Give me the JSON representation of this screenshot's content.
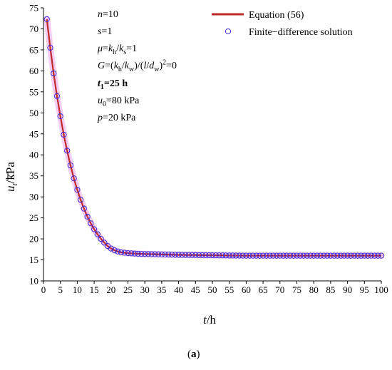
{
  "chart_data": {
    "type": "line",
    "x_ticks": [
      0,
      5,
      10,
      15,
      20,
      25,
      30,
      35,
      40,
      45,
      50,
      55,
      60,
      65,
      70,
      75,
      80,
      85,
      90,
      95,
      100
    ],
    "y_ticks": [
      10,
      15,
      20,
      25,
      30,
      35,
      40,
      45,
      50,
      55,
      60,
      65,
      70,
      75
    ],
    "xlim": [
      0,
      100
    ],
    "ylim": [
      10,
      75
    ],
    "xlabel_var": "t",
    "xlabel_unit": "/h",
    "ylabel_var": "u",
    "ylabel_sub": "t",
    "ylabel_unit": "/kPa",
    "grid": false,
    "legend_position": "top-right",
    "series": [
      {
        "name": "Equation (56)",
        "style": "line",
        "color": "#c0282a",
        "x": [
          1,
          2,
          3,
          4,
          5,
          6,
          7,
          8,
          9,
          10,
          11,
          12,
          13,
          14,
          15,
          16,
          17,
          18,
          19,
          20,
          21,
          22,
          23,
          24,
          25,
          26,
          27,
          28,
          30,
          35,
          40,
          45,
          50,
          55,
          60,
          65,
          70,
          75,
          80,
          85,
          90,
          95,
          100
        ],
        "y": [
          72.3,
          65.5,
          59.4,
          54.0,
          49.2,
          44.8,
          41.0,
          37.5,
          34.4,
          31.7,
          29.3,
          27.2,
          25.3,
          23.7,
          22.3,
          21.1,
          20.0,
          19.1,
          18.3,
          17.7,
          17.3,
          17.0,
          16.8,
          16.7,
          16.6,
          16.55,
          16.5,
          16.45,
          16.4,
          16.3,
          16.2,
          16.15,
          16.1,
          16.05,
          16.0,
          16.0,
          16.0,
          16.0,
          16.0,
          16.0,
          16.0,
          16.0,
          16.0
        ]
      },
      {
        "name": "Finite−difference solution",
        "style": "marker",
        "color": "#3b2bd6",
        "x": [
          1,
          2,
          3,
          4,
          5,
          6,
          7,
          8,
          9,
          10,
          11,
          12,
          13,
          14,
          15,
          16,
          17,
          18,
          19,
          20,
          21,
          22,
          23,
          24,
          25,
          26,
          27,
          28,
          29,
          30,
          31,
          32,
          33,
          34,
          35,
          36,
          37,
          38,
          39,
          40,
          41,
          42,
          43,
          44,
          45,
          46,
          47,
          48,
          49,
          50,
          51,
          52,
          53,
          54,
          55,
          56,
          57,
          58,
          59,
          60,
          61,
          62,
          63,
          64,
          65,
          66,
          67,
          68,
          69,
          70,
          71,
          72,
          73,
          74,
          75,
          76,
          77,
          78,
          79,
          80,
          81,
          82,
          83,
          84,
          85,
          86,
          87,
          88,
          89,
          90,
          91,
          92,
          93,
          94,
          95,
          96,
          97,
          98,
          99,
          100
        ],
        "y": [
          72.3,
          65.5,
          59.4,
          54.0,
          49.2,
          44.8,
          41.0,
          37.5,
          34.4,
          31.7,
          29.3,
          27.2,
          25.3,
          23.7,
          22.3,
          21.1,
          20.0,
          19.1,
          18.3,
          17.7,
          17.3,
          17.0,
          16.8,
          16.7,
          16.6,
          16.55,
          16.5,
          16.45,
          16.42,
          16.4,
          16.38,
          16.36,
          16.34,
          16.32,
          16.3,
          16.28,
          16.26,
          16.24,
          16.22,
          16.2,
          16.19,
          16.18,
          16.17,
          16.16,
          16.15,
          16.14,
          16.13,
          16.12,
          16.11,
          16.1,
          16.09,
          16.08,
          16.07,
          16.06,
          16.05,
          16.04,
          16.03,
          16.02,
          16.01,
          16.0,
          16.0,
          16.0,
          16.0,
          16.0,
          16.0,
          16.0,
          16.0,
          16.0,
          16.0,
          16.0,
          16.0,
          16.0,
          16.0,
          16.0,
          16.0,
          16.0,
          16.0,
          16.0,
          16.0,
          16.0,
          16.0,
          16.0,
          16.0,
          16.0,
          16.0,
          16.0,
          16.0,
          16.0,
          16.0,
          16.0,
          16.0,
          16.0,
          16.0,
          16.0,
          16.0,
          16.0,
          16.0,
          16.0,
          16.0,
          16.0
        ]
      }
    ]
  },
  "annotations": {
    "n_var": "n",
    "n_val": "=10",
    "s_var": "s",
    "s_val": "=1",
    "mu_var": "μ",
    "mu_eq": "=",
    "mu_k1": "k",
    "mu_k1_sub": "h",
    "mu_slash": "/",
    "mu_k2": "k",
    "mu_k2_sub": "s",
    "mu_val": "=1",
    "G_var": "G",
    "G_eq": "=(",
    "G_k1": "k",
    "G_k1_sub": "h",
    "G_slash": "/",
    "G_k2": "k",
    "G_k2_sub": "w",
    "G_mid": ")/(",
    "G_l": "l",
    "G_slash2": "/",
    "G_d": "d",
    "G_d_sub": "w",
    "G_close": ")",
    "G_sup": "2",
    "G_val": "=0",
    "t1_var": "t",
    "t1_sub": "1",
    "t1_val": "=25 h",
    "u0_var": "u",
    "u0_sub": "0",
    "u0_val": "=80 kPa",
    "p_var": "p",
    "p_val": "=20 kPa"
  },
  "panel_label": {
    "open": "(",
    "letter": "a",
    "close": ")"
  }
}
